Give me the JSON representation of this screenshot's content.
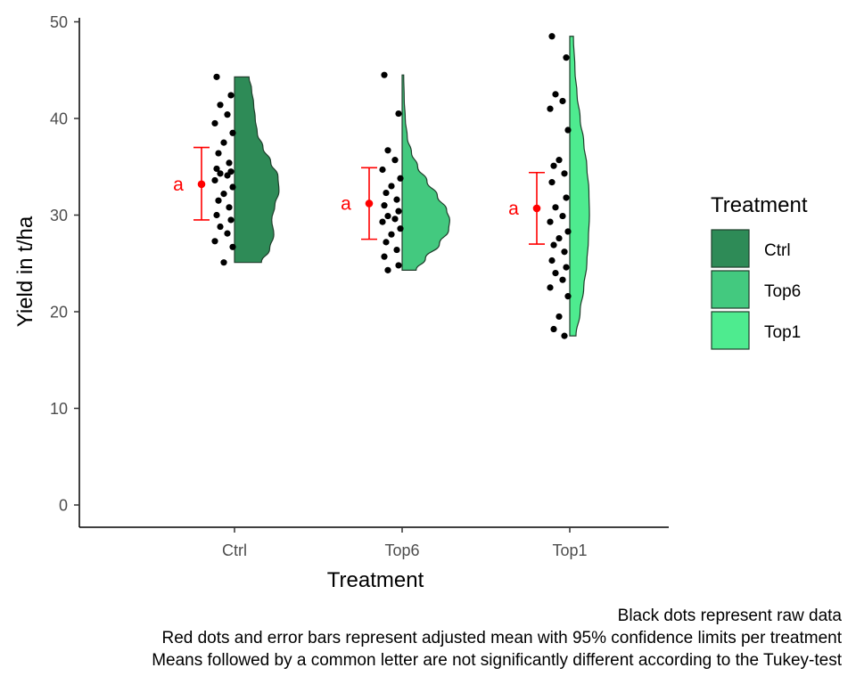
{
  "colors": {
    "Ctrl": "#2e8b57",
    "Top6": "#43c97f",
    "Top1": "#4eeb8f",
    "outline": "#1f3d2b",
    "mean": "#ff0000",
    "raw": "#000000"
  },
  "chart_data": {
    "type": "raincloud",
    "title": "",
    "xlabel": "Treatment",
    "ylabel": "Yield in t/ha",
    "ylim": [
      0,
      50
    ],
    "yticks": [
      0,
      10,
      20,
      30,
      40,
      50
    ],
    "categories": [
      "Ctrl",
      "Top6",
      "Top1"
    ],
    "legend": {
      "title": "Treatment",
      "position": "right",
      "entries": [
        "Ctrl",
        "Top6",
        "Top1"
      ]
    },
    "means": [
      {
        "treatment": "Ctrl",
        "mean": 33.2,
        "lower": 29.5,
        "upper": 37.0,
        "letter": "a"
      },
      {
        "treatment": "Top6",
        "mean": 31.2,
        "lower": 27.5,
        "upper": 34.9,
        "letter": "a"
      },
      {
        "treatment": "Top1",
        "mean": 30.7,
        "lower": 27.0,
        "upper": 34.4,
        "letter": "a"
      }
    ],
    "raw_data": {
      "Ctrl": [
        44.3,
        42.4,
        41.4,
        40.4,
        39.5,
        38.5,
        37.5,
        36.4,
        35.4,
        34.8,
        34.5,
        34.3,
        34.1,
        33.6,
        32.9,
        32.2,
        31.5,
        30.8,
        30.0,
        29.5,
        28.8,
        28.1,
        27.3,
        26.7,
        25.1
      ],
      "Top6": [
        44.5,
        40.5,
        36.7,
        35.7,
        34.7,
        33.8,
        33.0,
        32.3,
        31.6,
        31.0,
        30.4,
        29.9,
        29.6,
        29.3,
        28.6,
        28.0,
        27.2,
        26.4,
        25.7,
        24.8,
        24.3
      ],
      "Top1": [
        48.5,
        46.3,
        42.5,
        41.8,
        41.0,
        38.8,
        35.7,
        35.1,
        34.3,
        33.4,
        31.8,
        30.8,
        29.9,
        29.3,
        28.3,
        27.6,
        26.9,
        26.2,
        25.3,
        24.6,
        24.0,
        23.3,
        22.5,
        21.6,
        19.5,
        18.2,
        17.5
      ]
    },
    "density": {
      "Ctrl": {
        "y": [
          25.1,
          26.5,
          28,
          29.5,
          31,
          32.5,
          34,
          35.5,
          37,
          38.5,
          40,
          41.5,
          43,
          44.3
        ],
        "width": [
          0.52,
          0.68,
          0.76,
          0.72,
          0.78,
          0.86,
          0.84,
          0.7,
          0.55,
          0.44,
          0.4,
          0.37,
          0.33,
          0.28
        ]
      },
      "Top6": {
        "y": [
          24.3,
          25.5,
          27,
          28.5,
          29.5,
          30.5,
          32,
          33.5,
          35,
          36.5,
          38,
          40,
          42,
          44.5
        ],
        "width": [
          0.27,
          0.45,
          0.72,
          0.9,
          0.92,
          0.86,
          0.68,
          0.48,
          0.3,
          0.18,
          0.1,
          0.06,
          0.04,
          0.03
        ]
      },
      "Top1": {
        "y": [
          17.5,
          20,
          22.5,
          25,
          27.5,
          30,
          32.5,
          35,
          37.5,
          40,
          42.5,
          45,
          48.5
        ],
        "width": [
          0.12,
          0.2,
          0.27,
          0.33,
          0.36,
          0.38,
          0.37,
          0.33,
          0.27,
          0.2,
          0.14,
          0.1,
          0.07
        ]
      }
    }
  },
  "caption": {
    "line1": "Black dots represent raw data",
    "line2": "Red dots and error bars represent adjusted mean with 95% confidence limits per treatment",
    "line3": "Means followed by a common letter are not significantly different according to the Tukey-test"
  }
}
